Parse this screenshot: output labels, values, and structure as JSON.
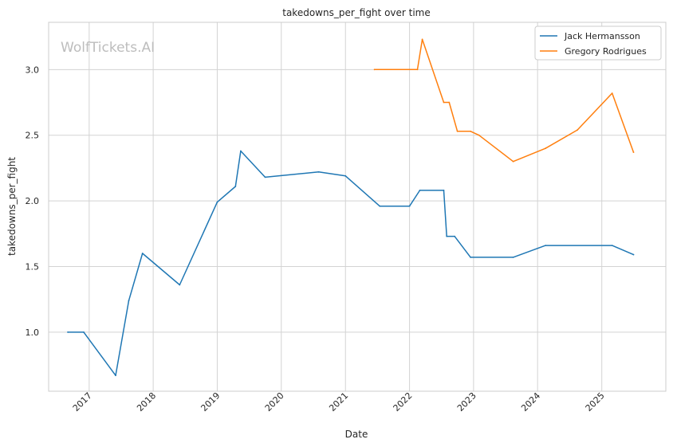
{
  "chart_data": {
    "type": "line",
    "title": "takedowns_per_fight over time",
    "xlabel": "Date",
    "ylabel": "takedowns_per_fight",
    "watermark": "WolfTickets.AI",
    "grid": true,
    "legend_position": "top-right",
    "x_ticks": [
      "2017",
      "2018",
      "2019",
      "2020",
      "2021",
      "2022",
      "2023",
      "2024",
      "2025"
    ],
    "y_ticks": [
      "1.0",
      "1.5",
      "2.0",
      "2.5",
      "3.0"
    ],
    "xlim": [
      "2016-05-15",
      "2026-01-01"
    ],
    "ylim": [
      0.55,
      3.36
    ],
    "series": [
      {
        "name": "Jack Hermansson",
        "color": "#1f77b4",
        "points": [
          {
            "x": "2016-09-01",
            "y": 1.0
          },
          {
            "x": "2016-12-01",
            "y": 1.0
          },
          {
            "x": "2017-06-01",
            "y": 0.67
          },
          {
            "x": "2017-08-15",
            "y": 1.24
          },
          {
            "x": "2017-11-01",
            "y": 1.6
          },
          {
            "x": "2018-06-01",
            "y": 1.36
          },
          {
            "x": "2019-01-01",
            "y": 1.99
          },
          {
            "x": "2019-04-15",
            "y": 2.11
          },
          {
            "x": "2019-05-15",
            "y": 2.38
          },
          {
            "x": "2019-10-01",
            "y": 2.18
          },
          {
            "x": "2020-08-01",
            "y": 2.22
          },
          {
            "x": "2021-01-01",
            "y": 2.19
          },
          {
            "x": "2021-07-15",
            "y": 1.96
          },
          {
            "x": "2022-01-01",
            "y": 1.96
          },
          {
            "x": "2022-03-01",
            "y": 2.08
          },
          {
            "x": "2022-07-15",
            "y": 2.08
          },
          {
            "x": "2022-08-01",
            "y": 1.73
          },
          {
            "x": "2022-09-15",
            "y": 1.73
          },
          {
            "x": "2022-12-15",
            "y": 1.57
          },
          {
            "x": "2023-08-15",
            "y": 1.57
          },
          {
            "x": "2024-02-15",
            "y": 1.66
          },
          {
            "x": "2025-03-01",
            "y": 1.66
          },
          {
            "x": "2025-07-01",
            "y": 1.59
          }
        ]
      },
      {
        "name": "Gregory Rodrigues",
        "color": "#ff7f0e",
        "points": [
          {
            "x": "2021-06-15",
            "y": 3.0
          },
          {
            "x": "2022-02-15",
            "y": 3.0
          },
          {
            "x": "2022-03-15",
            "y": 3.23
          },
          {
            "x": "2022-07-15",
            "y": 2.75
          },
          {
            "x": "2022-08-15",
            "y": 2.75
          },
          {
            "x": "2022-10-01",
            "y": 2.53
          },
          {
            "x": "2022-12-15",
            "y": 2.53
          },
          {
            "x": "2023-02-01",
            "y": 2.5
          },
          {
            "x": "2023-08-15",
            "y": 2.3
          },
          {
            "x": "2024-02-15",
            "y": 2.4
          },
          {
            "x": "2024-08-15",
            "y": 2.54
          },
          {
            "x": "2025-03-01",
            "y": 2.82
          },
          {
            "x": "2025-07-01",
            "y": 2.37
          }
        ]
      }
    ]
  }
}
